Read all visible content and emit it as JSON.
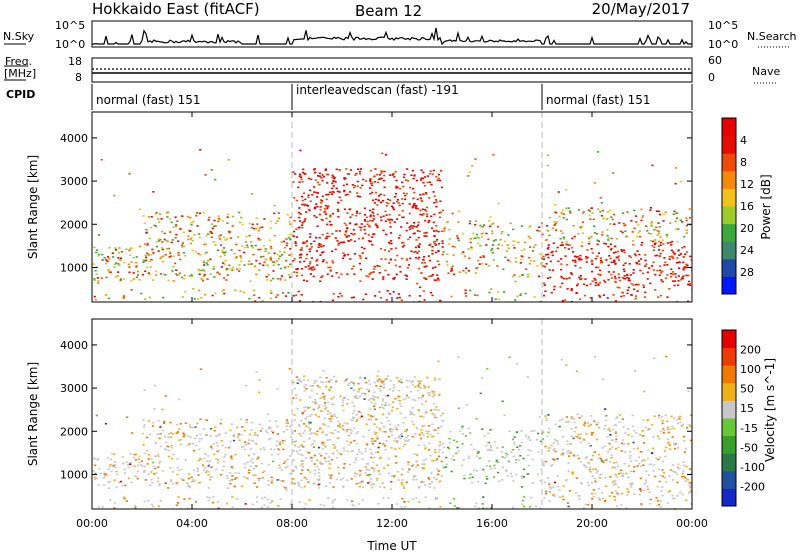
{
  "header": {
    "title": "Hokkaido East (fitACF)",
    "beam": "Beam 12",
    "date": "20/May/2017"
  },
  "strip": {
    "nsky_label": "N.Sky",
    "nsearch_label": "N.Search",
    "nsky_ticks": [
      "10^5",
      "10^0"
    ],
    "nsky_right_ticks": [
      "10^5",
      "10^0"
    ],
    "freq_label": "Freq.",
    "freq_unit": "[MHz]",
    "freq_ticks": [
      "18",
      "8"
    ],
    "nave_label": "Nave",
    "nave_ticks": [
      "60",
      "0"
    ],
    "cpid_label": "CPID",
    "cpid_segments": [
      {
        "label": "normal (fast) 151",
        "start_h": 0,
        "end_h": 8
      },
      {
        "label": "interleavedscan (fast) -191",
        "start_h": 8,
        "end_h": 18
      },
      {
        "label": "normal (fast) 151",
        "start_h": 18,
        "end_h": 24
      }
    ]
  },
  "chart_data": [
    {
      "type": "heatmap",
      "name": "power",
      "ylabel": "Slant Range [km]",
      "ylim": [
        200,
        4600
      ],
      "y_ticks": [
        1000,
        2000,
        3000,
        4000
      ],
      "x_ticks": [
        "00:00",
        "04:00",
        "08:00",
        "12:00",
        "16:00",
        "20:00",
        "00:00"
      ],
      "xlim_hours": [
        0,
        24
      ],
      "colorbar": {
        "label": "Power [dB]",
        "ticks": [
          "4",
          "8",
          "12",
          "16",
          "20",
          "24",
          "28"
        ],
        "colors": [
          "#0018ff",
          "#1f48a8",
          "#3c8a6a",
          "#3aa83a",
          "#9ccc2a",
          "#f2c21a",
          "#f58a0a",
          "#ee4a08",
          "#e60c00",
          "#e60000"
        ]
      }
    },
    {
      "type": "heatmap",
      "name": "velocity",
      "ylabel": "Slant Range [km]",
      "xlabel": "Time UT",
      "ylim": [
        200,
        4600
      ],
      "y_ticks": [
        1000,
        2000,
        3000,
        4000
      ],
      "x_ticks": [
        "00:00",
        "04:00",
        "08:00",
        "12:00",
        "16:00",
        "20:00",
        "00:00"
      ],
      "xlim_hours": [
        0,
        24
      ],
      "colorbar": {
        "label": "Velocity [m s^-1]",
        "ticks": [
          "200",
          "100",
          "50",
          "15",
          "-15",
          "-50",
          "-100",
          "-200"
        ],
        "colors": [
          "#1428c8",
          "#2050a0",
          "#2a7a48",
          "#38a028",
          "#68c838",
          "#c8c8c8",
          "#f0b018",
          "#f07a00",
          "#ee3c00",
          "#e60000"
        ]
      }
    }
  ]
}
